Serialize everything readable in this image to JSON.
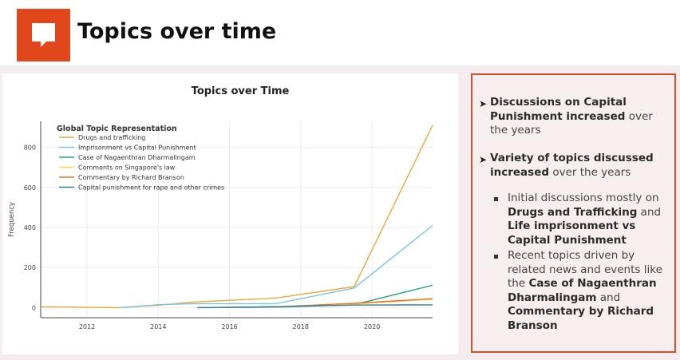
{
  "header": {
    "title": "Topics over time",
    "logo_icon": "speech-bubble-icon",
    "accent_color": "#e2461b"
  },
  "chart_data": {
    "type": "line",
    "title": "Topics over Time",
    "ylabel": "Frequency",
    "xlabel": "",
    "legend_title": "Global Topic Representation",
    "legend_position": "top-left",
    "xlim": [
      2010.7,
      2021.7
    ],
    "ylim": [
      -50,
      930
    ],
    "xticks": [
      2012,
      2014,
      2016,
      2018,
      2020
    ],
    "yticks": [
      0,
      200,
      400,
      600,
      800
    ],
    "grid": true,
    "series": [
      {
        "name": "Drugs and trafficking",
        "color": "#e8a93c",
        "x": [
          2010.7,
          2012.9,
          2014.0,
          2015.0,
          2017.3,
          2019.5,
          2021.7
        ],
        "y": [
          5,
          0,
          12,
          28,
          48,
          105,
          910
        ]
      },
      {
        "name": "Imprisonment vs Capital Punishment",
        "color": "#7cc3e3",
        "x": [
          2012.9,
          2014.0,
          2015.0,
          2017.3,
          2019.5,
          2021.7
        ],
        "y": [
          0,
          15,
          20,
          20,
          98,
          410
        ]
      },
      {
        "name": "Case of Nagaenthran Dharmalingam",
        "color": "#2aa47a",
        "x": [
          2015.1,
          2017.3,
          2019.5,
          2021.7
        ],
        "y": [
          0,
          2,
          15,
          112
        ]
      },
      {
        "name": "Comments on Singapore's law",
        "color": "#f2dc4a",
        "x": [
          2015.1,
          2017.3,
          2019.5,
          2021.7
        ],
        "y": [
          0,
          3,
          18,
          42
        ]
      },
      {
        "name": "Commentary by Richard Branson",
        "color": "#e8742c",
        "x": [
          2015.1,
          2017.3,
          2019.5,
          2021.7
        ],
        "y": [
          0,
          4,
          22,
          45
        ]
      },
      {
        "name": "Capital punishment for rape and other crimes",
        "color": "#2b7fa8",
        "x": [
          2015.1,
          2017.3,
          2019.5,
          2021.7
        ],
        "y": [
          0,
          5,
          13,
          14
        ]
      }
    ]
  },
  "notes": {
    "b1_bold": "Discussions on Capital Punishment increased",
    "b1_rest": " over the years",
    "b2_bold": "Variety of topics discussed increased",
    "b2_rest": " over the years",
    "s1_pre": "Initial discussions mostly on ",
    "s1_bold1": "Drugs and Trafficking",
    "s1_mid": " and ",
    "s1_bold2": "Life imprisonment vs Capital Punishment",
    "s2_pre": "Recent topics driven by related news and events  like the ",
    "s2_bold1": "Case of Nagaenthran Dharmalingam",
    "s2_mid": " and ",
    "s2_bold2": "Commentary by Richard Branson"
  }
}
